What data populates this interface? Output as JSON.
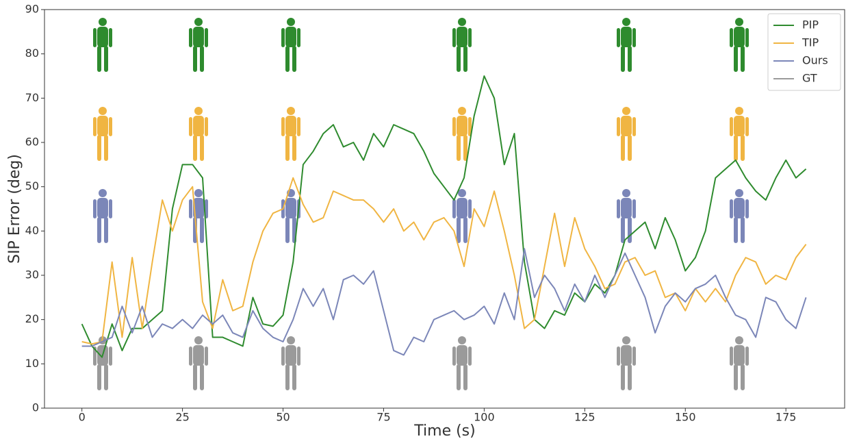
{
  "chart_data": {
    "type": "line",
    "xlabel": "Time (s)",
    "ylabel": "SIP Error (deg)",
    "xlim": [
      -9.3,
      189.6
    ],
    "ylim": [
      0,
      90
    ],
    "xticks": [
      0,
      25,
      50,
      75,
      100,
      125,
      150,
      175
    ],
    "yticks": [
      0,
      10,
      20,
      30,
      40,
      50,
      60,
      70,
      80,
      90
    ],
    "legend": "upper right",
    "x": [
      0,
      2.5,
      5,
      7.5,
      10,
      12.5,
      15,
      17.5,
      20,
      22.5,
      25,
      27.5,
      30,
      32.5,
      35,
      37.5,
      40,
      42.5,
      45,
      47.5,
      50,
      52.5,
      55,
      57.5,
      60,
      62.5,
      65,
      67.5,
      70,
      72.5,
      75,
      77.5,
      80,
      82.5,
      85,
      87.5,
      90,
      92.5,
      95,
      97.5,
      100,
      102.5,
      105,
      107.5,
      110,
      112.5,
      115,
      117.5,
      120,
      122.5,
      125,
      127.5,
      130,
      132.5,
      135,
      137.5,
      140,
      142.5,
      145,
      147.5,
      150,
      152.5,
      155,
      157.5,
      160,
      162.5,
      165,
      167.5,
      170,
      172.5,
      175,
      177.5,
      180
    ],
    "series": [
      {
        "name": "PIP",
        "color": "#2e8b2e",
        "values": [
          19,
          14,
          11.5,
          19,
          13,
          18,
          18,
          20,
          22,
          45,
          55,
          55,
          52,
          16,
          16,
          15,
          14,
          25,
          19,
          18.5,
          21,
          33,
          55,
          58,
          62,
          64,
          59,
          60,
          56,
          62,
          59,
          64,
          63,
          62,
          58,
          53,
          50,
          47,
          52,
          66,
          75,
          70,
          55,
          62,
          33,
          20,
          18,
          22,
          21,
          26,
          24,
          28,
          26,
          30,
          38,
          40,
          42,
          36,
          43,
          38,
          31,
          34,
          40,
          52,
          54,
          56,
          52,
          49,
          47,
          52,
          56,
          52,
          54
        ]
      },
      {
        "name": "TIP",
        "color": "#f0b542",
        "values": [
          15,
          14.5,
          15,
          33,
          16,
          34,
          18,
          33,
          47,
          40,
          47,
          50,
          24,
          18,
          29,
          22,
          23,
          33,
          40,
          44,
          45,
          52,
          46,
          42,
          43,
          49,
          48,
          47,
          47,
          45,
          42,
          45,
          40,
          42,
          38,
          42,
          43,
          40,
          32,
          45,
          41,
          49,
          40,
          30,
          18,
          20,
          32,
          44,
          32,
          43,
          36,
          32,
          27,
          28,
          33,
          34,
          30,
          31,
          25,
          26,
          22,
          27,
          24,
          27,
          24,
          30,
          34,
          33,
          28,
          30,
          29,
          34,
          37
        ]
      },
      {
        "name": "Ours",
        "color": "#7b86b8",
        "values": [
          14,
          14,
          15,
          16,
          23,
          17,
          23,
          16,
          19,
          18,
          20,
          18,
          21,
          19,
          21,
          17,
          16,
          22,
          18,
          16,
          15,
          20,
          27,
          23,
          27,
          20,
          29,
          30,
          28,
          31,
          22,
          13,
          12,
          16,
          15,
          20,
          21,
          22,
          20,
          21,
          23,
          19,
          26,
          20,
          36,
          25,
          30,
          27,
          22,
          28,
          24,
          30,
          25,
          30,
          35,
          30,
          25,
          17,
          23,
          26,
          24,
          27,
          28,
          30,
          25,
          21,
          20,
          16,
          25,
          24,
          20,
          18,
          25
        ]
      },
      {
        "name": "GT",
        "color": "#9a9a9a"
      }
    ]
  }
}
